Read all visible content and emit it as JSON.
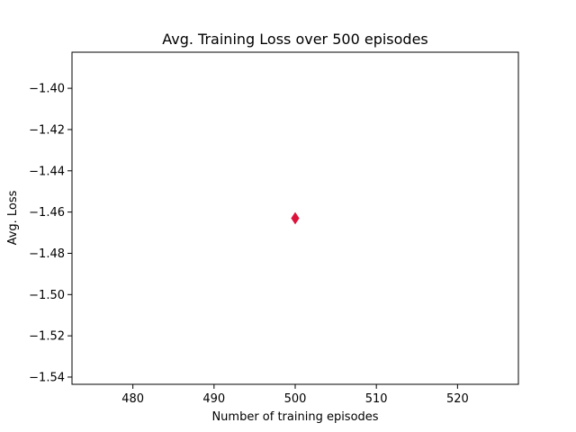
{
  "chart_data": {
    "type": "scatter",
    "title": "Avg. Training Loss over 500 episodes",
    "xlabel": "Number of training episodes",
    "ylabel": "Avg. Loss",
    "xlim": [
      472.5,
      527.5
    ],
    "ylim": [
      -1.5435,
      -1.3825
    ],
    "x_ticks": [
      480,
      490,
      500,
      510,
      520
    ],
    "y_ticks": [
      -1.4,
      -1.42,
      -1.44,
      -1.46,
      -1.48,
      -1.5,
      -1.52,
      -1.54
    ],
    "y_tick_labels": [
      "−1.40",
      "−1.42",
      "−1.44",
      "−1.46",
      "−1.48",
      "−1.50",
      "−1.52",
      "−1.54"
    ],
    "grid": false,
    "marker": "diamond",
    "marker_color": "#dc143c",
    "points": [
      {
        "x": 500,
        "y": -1.463
      }
    ]
  }
}
